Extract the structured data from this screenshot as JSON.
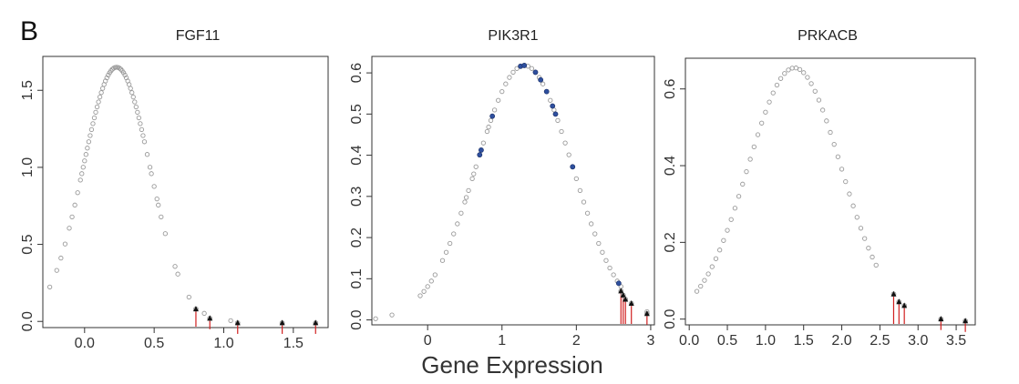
{
  "figure": {
    "panel_label": "B",
    "xlabel": "Gene Expression"
  },
  "chart_data": [
    {
      "type": "scatter",
      "title": "FGF11",
      "xlabel": "",
      "ylabel": "",
      "xlim": [
        -0.3,
        1.75
      ],
      "ylim": [
        -0.04,
        1.72
      ],
      "xticks": [
        "0.0",
        "0.5",
        "1.0",
        "1.5"
      ],
      "yticks": [
        "0.0",
        "0.5",
        "1.0",
        "1.5"
      ],
      "curve": {
        "mean": 0.23,
        "sd": 0.24,
        "peak": 1.65
      },
      "gray_points_x": [
        -0.25,
        -0.2,
        -0.17,
        -0.14,
        -0.11,
        -0.09,
        -0.07,
        -0.05,
        -0.03,
        -0.02,
        -0.01,
        0.0,
        0.01,
        0.02,
        0.03,
        0.04,
        0.05,
        0.06,
        0.07,
        0.08,
        0.09,
        0.1,
        0.11,
        0.12,
        0.13,
        0.14,
        0.15,
        0.16,
        0.17,
        0.18,
        0.19,
        0.2,
        0.21,
        0.22,
        0.23,
        0.24,
        0.25,
        0.26,
        0.27,
        0.28,
        0.29,
        0.3,
        0.31,
        0.32,
        0.33,
        0.34,
        0.35,
        0.36,
        0.37,
        0.38,
        0.39,
        0.4,
        0.41,
        0.42,
        0.43,
        0.45,
        0.47,
        0.48,
        0.5,
        0.52,
        0.53,
        0.55,
        0.58,
        0.65,
        0.67,
        0.75,
        0.86,
        1.05
      ],
      "highlight_points": [
        {
          "x": 0.8,
          "y": 0.08
        },
        {
          "x": 0.9,
          "y": 0.02
        },
        {
          "x": 1.1,
          "y": -0.01
        },
        {
          "x": 1.42,
          "y": -0.01
        },
        {
          "x": 1.66,
          "y": -0.01
        }
      ]
    },
    {
      "type": "scatter",
      "title": "PIK3R1",
      "xlabel": "",
      "ylabel": "",
      "xlim": [
        -0.75,
        3.05
      ],
      "ylim": [
        -0.012,
        0.64
      ],
      "xticks": [
        "0",
        "1",
        "2",
        "3"
      ],
      "yticks": [
        "0.0",
        "0.1",
        "0.2",
        "0.3",
        "0.4",
        "0.5",
        "0.6"
      ],
      "curve": {
        "mean": 1.3,
        "sd": 0.645,
        "peak": 0.618
      },
      "gray_points_x": [
        -0.1,
        -0.05,
        0.0,
        0.05,
        0.1,
        0.2,
        0.25,
        0.3,
        0.35,
        0.4,
        0.45,
        0.5,
        0.52,
        0.55,
        0.6,
        0.62,
        0.65,
        0.7,
        0.75,
        0.8,
        0.82,
        0.85,
        0.9,
        0.95,
        1.0,
        1.05,
        1.1,
        1.15,
        1.2,
        1.25,
        1.3,
        1.35,
        1.4,
        1.45,
        1.5,
        1.55,
        1.6,
        1.65,
        1.7,
        1.75,
        1.8,
        1.85,
        1.9,
        2.0,
        2.05,
        2.1,
        2.15,
        2.2,
        2.25,
        2.3,
        2.35,
        2.4,
        2.45,
        2.5,
        2.55,
        2.6
      ],
      "isolated_points": [
        {
          "x": -0.7,
          "y": 0.003
        },
        {
          "x": -0.48,
          "y": 0.012
        },
        {
          "x": 2.95,
          "y": 0.02
        }
      ],
      "blue_points_x": [
        0.7,
        0.72,
        0.87,
        1.25,
        1.3,
        1.45,
        1.52,
        1.6,
        1.68,
        1.72,
        1.95,
        2.57
      ],
      "highlight_points": [
        {
          "x": 2.6,
          "y": 0.07
        },
        {
          "x": 2.63,
          "y": 0.06
        },
        {
          "x": 2.66,
          "y": 0.05
        },
        {
          "x": 2.74,
          "y": 0.04
        },
        {
          "x": 2.95,
          "y": 0.015
        }
      ]
    },
    {
      "type": "scatter",
      "title": "PRKACB",
      "xlabel": "",
      "ylabel": "",
      "xlim": [
        -0.05,
        3.75
      ],
      "ylim": [
        -0.015,
        0.68
      ],
      "xticks": [
        "0.0",
        "0.5",
        "1.0",
        "1.5",
        "2.0",
        "2.5",
        "3.0",
        "3.5"
      ],
      "yticks": [
        "0.0",
        "0.2",
        "0.4",
        "0.6"
      ],
      "curve": {
        "mean": 1.38,
        "sd": 0.61,
        "peak": 0.655
      },
      "gray_points_x": [
        0.1,
        0.15,
        0.2,
        0.25,
        0.3,
        0.35,
        0.4,
        0.45,
        0.5,
        0.55,
        0.6,
        0.65,
        0.7,
        0.75,
        0.8,
        0.85,
        0.9,
        0.95,
        1.0,
        1.05,
        1.1,
        1.15,
        1.2,
        1.25,
        1.3,
        1.35,
        1.4,
        1.45,
        1.5,
        1.55,
        1.6,
        1.65,
        1.7,
        1.75,
        1.8,
        1.85,
        1.9,
        1.95,
        2.0,
        2.05,
        2.1,
        2.15,
        2.2,
        2.25,
        2.3,
        2.35,
        2.4,
        2.45
      ],
      "highlight_points": [
        {
          "x": 2.68,
          "y": 0.065
        },
        {
          "x": 2.75,
          "y": 0.045
        },
        {
          "x": 2.82,
          "y": 0.035
        },
        {
          "x": 3.3,
          "y": 0.0
        },
        {
          "x": 3.62,
          "y": -0.005
        }
      ]
    }
  ]
}
